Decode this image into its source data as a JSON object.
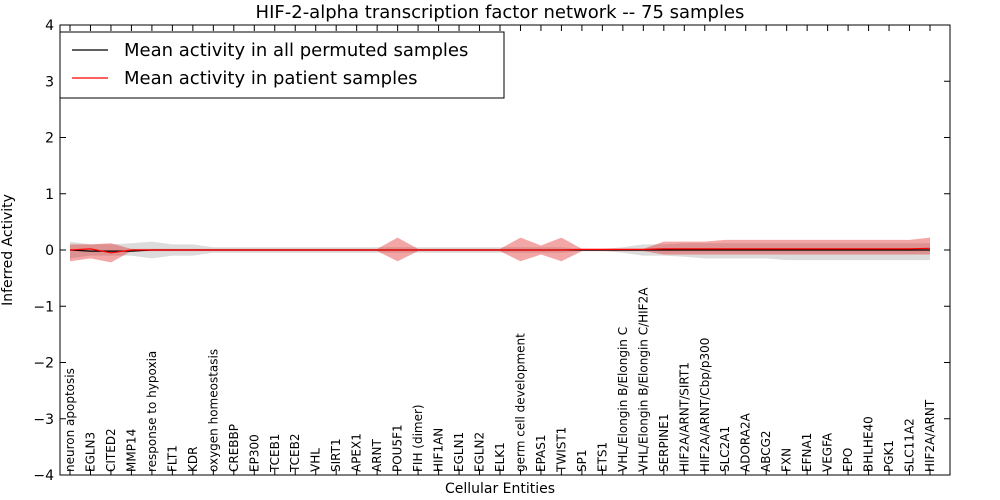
{
  "chart_data": {
    "type": "line",
    "title": "HIF-2-alpha transcription factor network -- 75 samples",
    "xlabel": "Cellular Entities",
    "ylabel": "Inferred Activity",
    "ylim": [
      -4,
      4
    ],
    "yticks": [
      -4,
      -3,
      -2,
      -1,
      0,
      1,
      2,
      3,
      4
    ],
    "grid": false,
    "legend_position": "top-left",
    "colors": {
      "permuted_line": "#000000",
      "permuted_band": "#bfbfbf",
      "patient_line": "#ff0000",
      "patient_band": "#e02020"
    },
    "categories": [
      "neuron apoptosis",
      "EGLN3",
      "CITED2",
      "MMP14",
      "response to hypoxia",
      "FLT1",
      "KDR",
      "oxygen homeostasis",
      "CREBBP",
      "EP300",
      "TCEB1",
      "TCEB2",
      "VHL",
      "SIRT1",
      "APEX1",
      "ARNT",
      "POU5F1",
      "FIH (dimer)",
      "HIF1AN",
      "EGLN1",
      "EGLN2",
      "ELK1",
      "germ cell development",
      "EPAS1",
      "TWIST1",
      "SP1",
      "ETS1",
      "VHL/Elongin B/Elongin C",
      "VHL/Elongin B/Elongin C/HIF2A",
      "SERPINE1",
      "HIF2A/ARNT/SIRT1",
      "HIF2A/ARNT/Cbp/p300",
      "SLC2A1",
      "ADORA2A",
      "ABCG2",
      "FXN",
      "EFNA1",
      "VEGFA",
      "EPO",
      "BHLHE40",
      "PGK1",
      "SLC11A2",
      "HIF2A/ARNT"
    ],
    "series": [
      {
        "name": "Mean activity in all permuted samples",
        "values": [
          0,
          -0.02,
          -0.02,
          -0.02,
          0,
          0,
          0,
          0,
          0,
          0,
          0,
          0,
          0,
          0,
          0,
          0,
          0,
          0,
          0,
          0,
          0,
          0,
          0,
          0,
          0,
          0,
          0,
          0,
          0,
          0,
          0,
          0,
          0,
          0,
          0,
          0,
          0,
          0,
          0,
          0,
          0,
          0,
          0
        ],
        "lower": [
          -0.15,
          -0.1,
          -0.1,
          -0.1,
          -0.15,
          -0.1,
          -0.1,
          -0.05,
          -0.05,
          -0.05,
          -0.05,
          -0.05,
          -0.05,
          -0.05,
          -0.05,
          -0.05,
          -0.05,
          -0.05,
          -0.05,
          -0.05,
          -0.05,
          -0.05,
          -0.05,
          -0.05,
          -0.05,
          -0.02,
          -0.02,
          -0.05,
          -0.1,
          -0.1,
          -0.12,
          -0.15,
          -0.15,
          -0.15,
          -0.15,
          -0.18,
          -0.18,
          -0.18,
          -0.18,
          -0.18,
          -0.18,
          -0.18,
          -0.18
        ],
        "upper": [
          0.15,
          0.1,
          0.1,
          0.12,
          0.15,
          0.1,
          0.1,
          0.05,
          0.05,
          0.05,
          0.05,
          0.05,
          0.05,
          0.05,
          0.05,
          0.05,
          0.05,
          0.05,
          0.05,
          0.05,
          0.05,
          0.05,
          0.05,
          0.05,
          0.05,
          0.02,
          0.02,
          0.05,
          0.1,
          0.1,
          0.12,
          0.12,
          0.12,
          0.12,
          0.12,
          0.12,
          0.12,
          0.12,
          0.12,
          0.12,
          0.12,
          0.12,
          0.12
        ]
      },
      {
        "name": "Mean activity in patient samples",
        "values": [
          0,
          0.02,
          -0.05,
          0,
          0,
          0,
          0,
          0,
          0,
          0,
          0,
          0,
          0,
          0,
          0,
          0,
          0,
          0,
          0,
          0,
          0,
          0,
          0,
          0,
          0,
          0.01,
          0.01,
          0.01,
          0.01,
          0.02,
          0.02,
          0.02,
          0.02,
          0.02,
          0.02,
          0.02,
          0.02,
          0.02,
          0.02,
          0.02,
          0.02,
          0.02,
          0.03
        ],
        "lower": [
          -0.2,
          -0.15,
          -0.22,
          -0.02,
          -0.02,
          -0.02,
          -0.02,
          -0.02,
          -0.02,
          -0.02,
          -0.02,
          -0.02,
          -0.02,
          -0.02,
          -0.02,
          -0.02,
          -0.2,
          -0.02,
          -0.02,
          -0.02,
          -0.02,
          -0.02,
          -0.2,
          -0.08,
          -0.2,
          -0.02,
          -0.02,
          -0.02,
          -0.02,
          -0.08,
          -0.08,
          -0.08,
          -0.08,
          -0.08,
          -0.08,
          -0.08,
          -0.08,
          -0.08,
          -0.08,
          -0.08,
          -0.08,
          -0.08,
          -0.08
        ],
        "upper": [
          0.1,
          0.1,
          0.12,
          0.02,
          0.02,
          0.02,
          0.02,
          0.02,
          0.02,
          0.02,
          0.02,
          0.02,
          0.02,
          0.02,
          0.02,
          0.02,
          0.22,
          0.02,
          0.02,
          0.02,
          0.02,
          0.02,
          0.22,
          0.08,
          0.22,
          0.02,
          0.02,
          0.02,
          0.02,
          0.15,
          0.15,
          0.15,
          0.18,
          0.18,
          0.18,
          0.18,
          0.18,
          0.18,
          0.18,
          0.18,
          0.18,
          0.18,
          0.22
        ]
      }
    ]
  }
}
